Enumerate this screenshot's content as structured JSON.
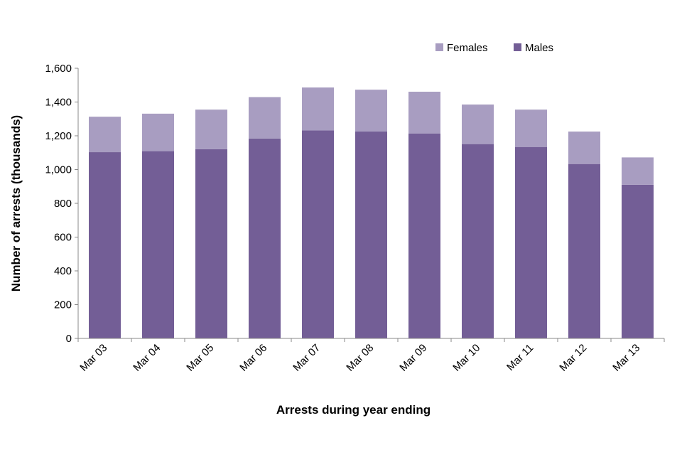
{
  "chart_data": {
    "type": "bar",
    "stacked": true,
    "title": "",
    "xlabel": "Arrests during year ending",
    "ylabel": "Number of arrests (thousands)",
    "ylim": [
      0,
      1600
    ],
    "yticks": [
      0,
      200,
      400,
      600,
      800,
      1000,
      1200,
      1400,
      1600
    ],
    "ytick_labels": [
      "0",
      "200",
      "400",
      "600",
      "800",
      "1,000",
      "1,200",
      "1,400",
      "1,600"
    ],
    "categories": [
      "Mar 03",
      "Mar 04",
      "Mar 05",
      "Mar 06",
      "Mar 07",
      "Mar 08",
      "Mar 09",
      "Mar 10",
      "Mar 11",
      "Mar 12",
      "Mar 13"
    ],
    "series": [
      {
        "name": "Males",
        "color": "#735E96",
        "values": [
          1103,
          1109,
          1121,
          1184,
          1232,
          1226,
          1214,
          1151,
          1134,
          1033,
          910
        ]
      },
      {
        "name": "Females",
        "color": "#A89DC1",
        "values": [
          210,
          222,
          234,
          245,
          254,
          247,
          247,
          234,
          221,
          192,
          162
        ]
      }
    ],
    "legend": {
      "position": "top-right",
      "order": [
        "Females",
        "Males"
      ]
    },
    "grid": false
  }
}
